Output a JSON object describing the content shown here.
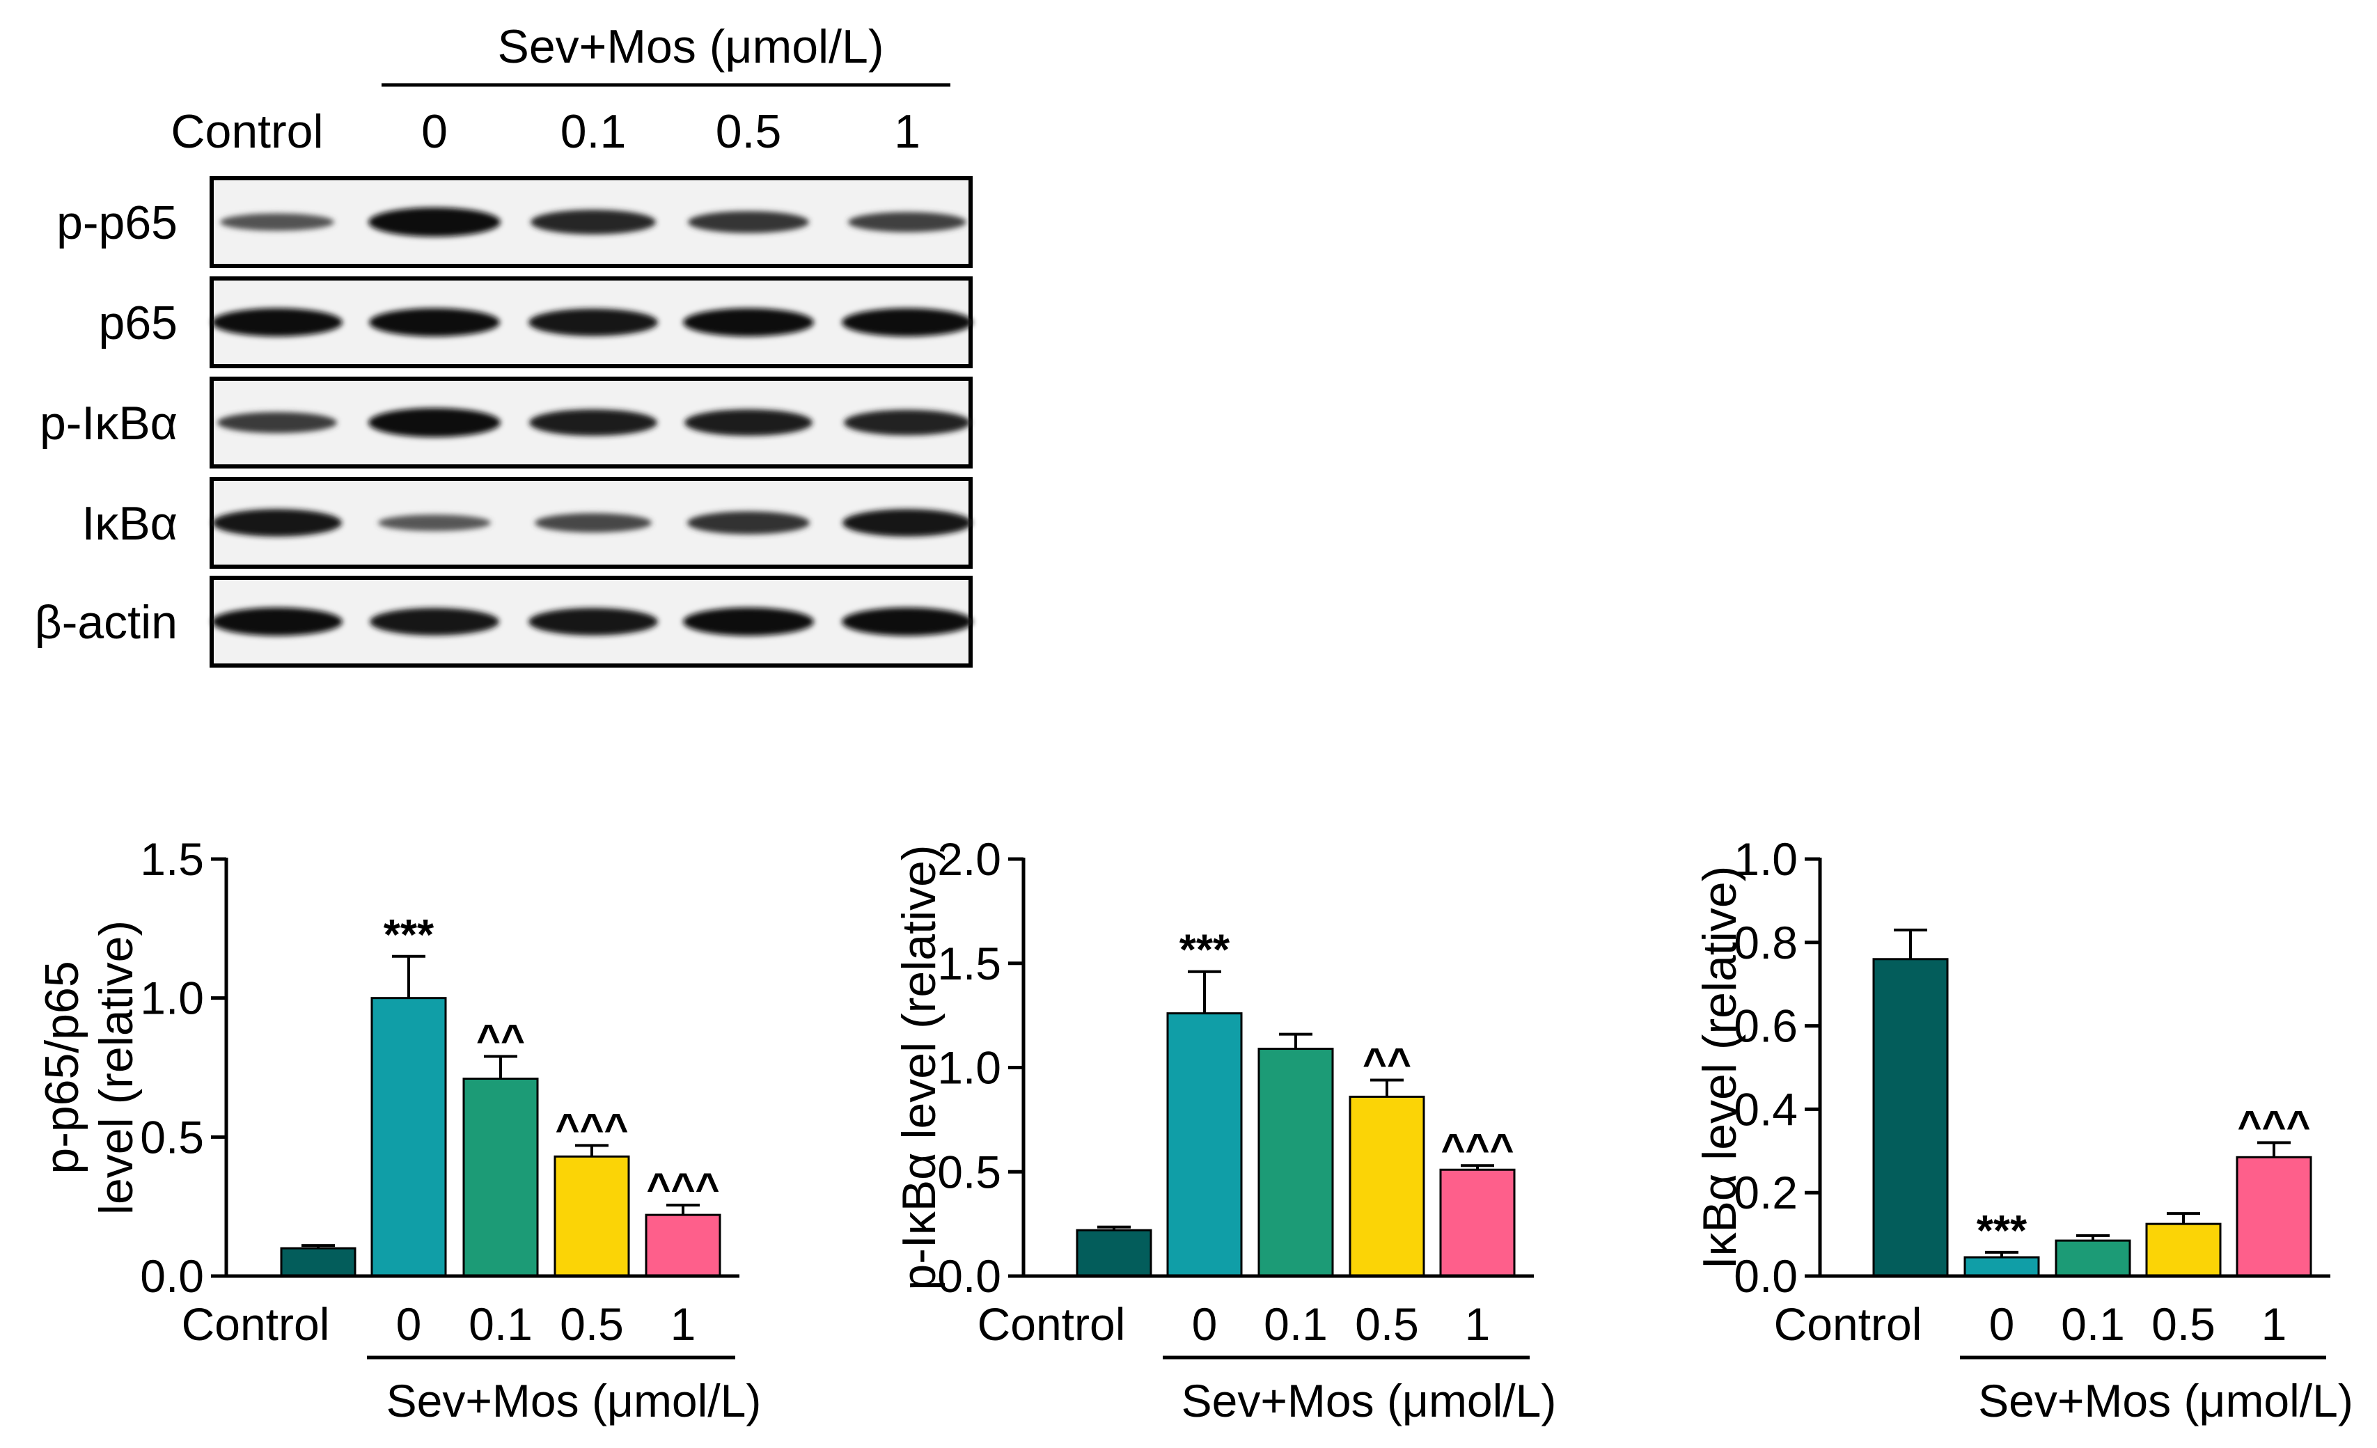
{
  "blot": {
    "group_label": "Sev+Mos (μmol/L)",
    "lanes": [
      "Control",
      "0",
      "0.1",
      "0.5",
      "1"
    ],
    "rows": [
      {
        "label": "p-p65",
        "intensity": [
          0.35,
          1.0,
          0.75,
          0.6,
          0.5
        ]
      },
      {
        "label": "p65",
        "intensity": [
          0.95,
          0.95,
          0.9,
          0.95,
          0.95
        ]
      },
      {
        "label": "p-IκBα",
        "intensity": [
          0.55,
          1.0,
          0.85,
          0.85,
          0.8
        ]
      },
      {
        "label": "IκBα",
        "intensity": [
          0.9,
          0.3,
          0.45,
          0.65,
          0.9
        ]
      },
      {
        "label": "β-actin",
        "intensity": [
          0.95,
          0.9,
          0.9,
          0.95,
          0.95
        ]
      }
    ]
  },
  "colors": [
    "#035d5b",
    "#109ea7",
    "#1c9b76",
    "#fbd406",
    "#fe5f8b"
  ],
  "chart_data": [
    {
      "type": "bar",
      "ylabel": [
        "p-p65/p65",
        "level (relative)"
      ],
      "categories": [
        "Control",
        "0",
        "0.1",
        "0.5",
        "1"
      ],
      "group_label": "Sev+Mos (μmol/L)",
      "values": [
        0.1,
        1.0,
        0.71,
        0.43,
        0.22
      ],
      "errors": [
        0.01,
        0.15,
        0.08,
        0.04,
        0.035
      ],
      "annotations": [
        "",
        "***",
        "^^",
        "^^^",
        "^^^"
      ],
      "ylim": [
        0,
        1.5
      ],
      "yticks": [
        "0.0",
        "0.5",
        "1.0",
        "1.5"
      ],
      "ytick_values": [
        0,
        0.5,
        1.0,
        1.5
      ]
    },
    {
      "type": "bar",
      "ylabel": [
        "p-IκBα level (relative)"
      ],
      "categories": [
        "Control",
        "0",
        "0.1",
        "0.5",
        "1"
      ],
      "group_label": "Sev+Mos (μmol/L)",
      "values": [
        0.22,
        1.26,
        1.09,
        0.86,
        0.51
      ],
      "errors": [
        0.015,
        0.2,
        0.07,
        0.08,
        0.02
      ],
      "annotations": [
        "",
        "***",
        "",
        "^^",
        "^^^"
      ],
      "ylim": [
        0,
        2.0
      ],
      "yticks": [
        "0.0",
        "0.5",
        "1.0",
        "1.5",
        "2.0"
      ],
      "ytick_values": [
        0,
        0.5,
        1.0,
        1.5,
        2.0
      ]
    },
    {
      "type": "bar",
      "ylabel": [
        "IκBα level (relative)"
      ],
      "categories": [
        "Control",
        "0",
        "0.1",
        "0.5",
        "1"
      ],
      "group_label": "Sev+Mos (μmol/L)",
      "values": [
        0.76,
        0.045,
        0.085,
        0.125,
        0.285
      ],
      "errors": [
        0.07,
        0.012,
        0.012,
        0.025,
        0.035
      ],
      "annotations": [
        "",
        "***",
        "",
        "",
        "^^^"
      ],
      "ylim": [
        0,
        1.0
      ],
      "yticks": [
        "0.0",
        "0.2",
        "0.4",
        "0.6",
        "0.8",
        "1.0"
      ],
      "ytick_values": [
        0,
        0.2,
        0.4,
        0.6,
        0.8,
        1.0
      ]
    }
  ]
}
